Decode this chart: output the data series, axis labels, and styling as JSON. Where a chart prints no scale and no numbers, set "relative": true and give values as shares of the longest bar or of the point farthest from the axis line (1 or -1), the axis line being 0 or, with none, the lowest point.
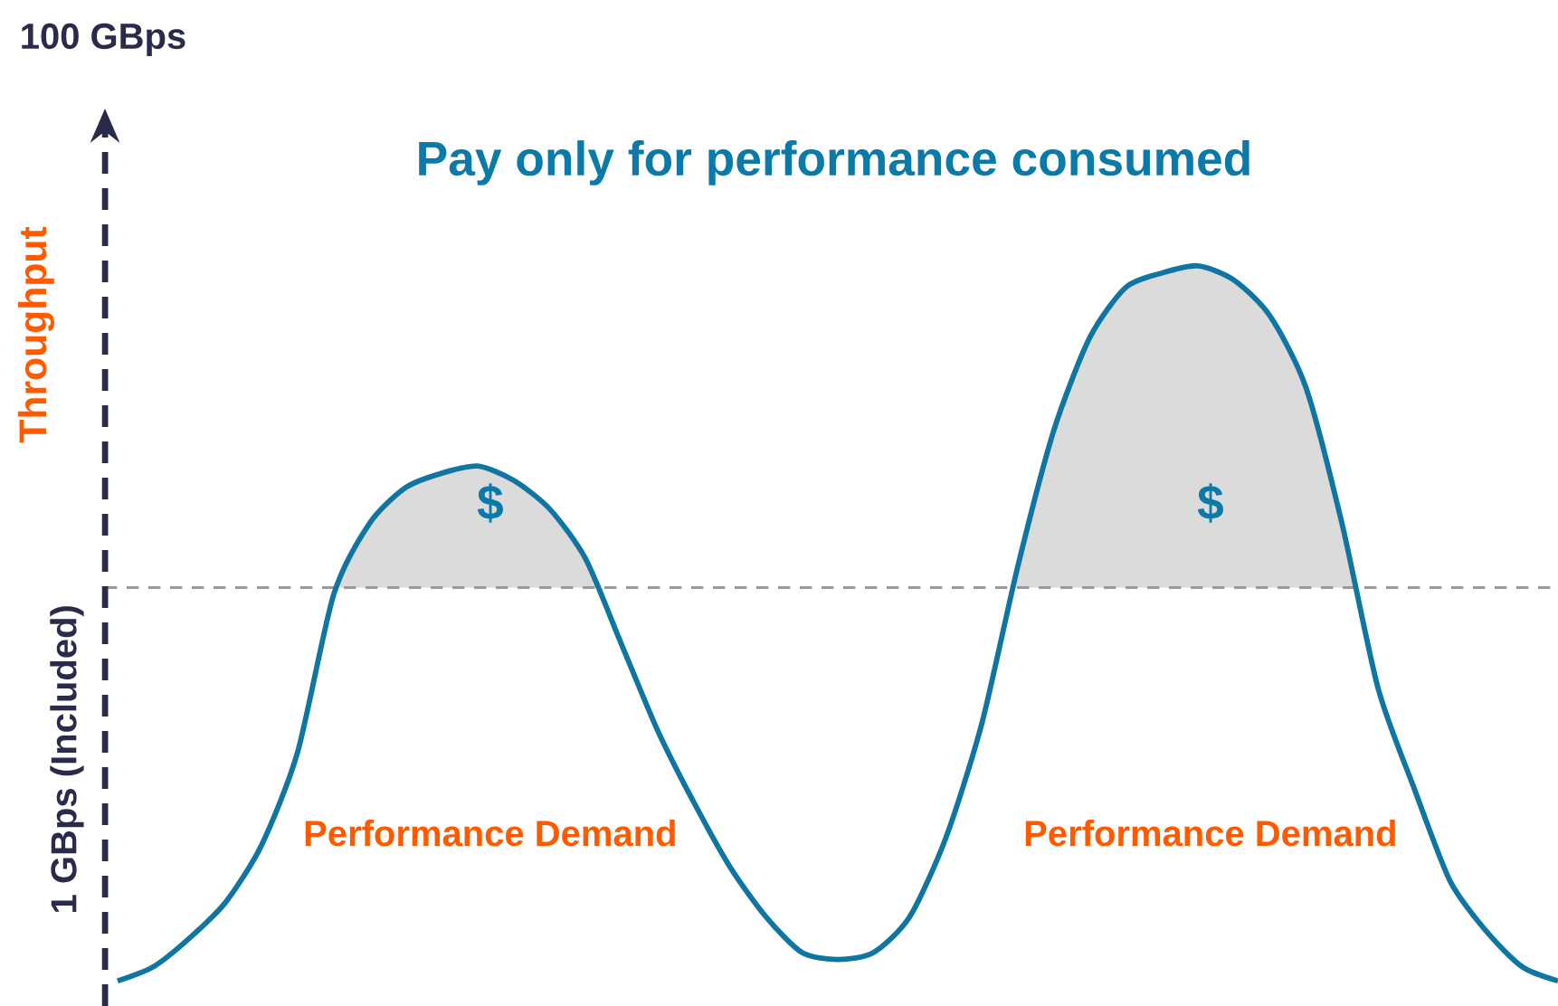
{
  "chart_data": {
    "type": "line",
    "relative": true,
    "title": "Pay only for performance consumed",
    "ylabel": "Throughput",
    "categories": [
      null,
      null,
      null,
      null,
      null,
      null,
      null,
      null,
      null,
      null,
      null,
      null,
      null,
      null,
      null,
      null,
      null,
      null,
      null,
      null,
      null,
      null,
      null,
      null,
      null,
      null,
      null,
      null,
      null,
      null,
      null,
      null,
      null,
      null,
      null,
      null,
      null,
      null,
      null,
      null,
      null
    ],
    "series": [
      {
        "color": "#0e76a0",
        "values": [
          0.0,
          0.02,
          0.06,
          0.11,
          0.19,
          0.32,
          0.54,
          0.64,
          0.69,
          0.71,
          0.72,
          0.7,
          0.66,
          0.59,
          0.47,
          0.35,
          0.25,
          0.16,
          0.09,
          0.04,
          0.03,
          0.04,
          0.09,
          0.2,
          0.36,
          0.58,
          0.77,
          0.9,
          0.97,
          0.99,
          1.0,
          0.98,
          0.93,
          0.83,
          0.64,
          0.41,
          0.27,
          0.14,
          0.07,
          0.02,
          0.0
        ]
      }
    ],
    "ref_lines": [
      {
        "axis": "y",
        "value": 0.55,
        "label": "1 GBps (Included)",
        "color": "#999999",
        "line_style": "dashed"
      }
    ],
    "annotations": [
      "100 GBps",
      "$",
      "$",
      "Performance Demand",
      "Performance Demand"
    ]
  }
}
